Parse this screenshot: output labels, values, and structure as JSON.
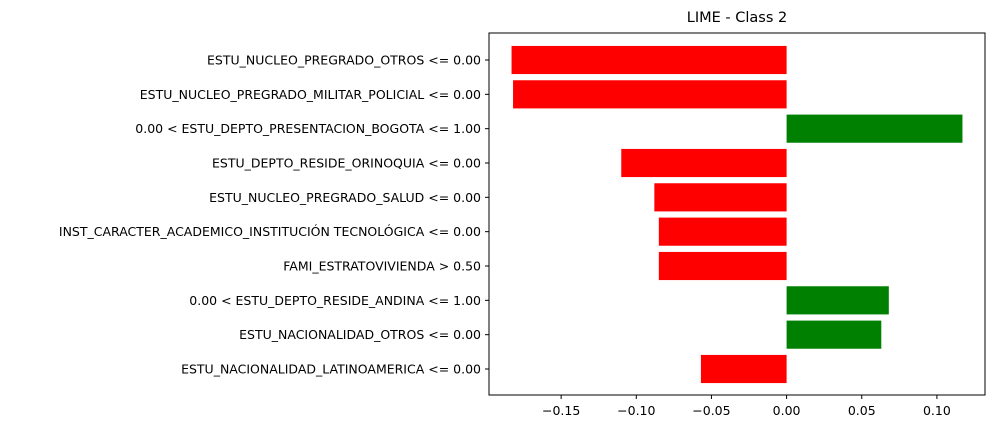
{
  "chart_data": {
    "type": "bar",
    "orientation": "horizontal",
    "title": "LIME - Class 2",
    "xlabel": "",
    "ylabel": "",
    "xlim": [
      -0.198,
      0.132
    ],
    "grid": false,
    "legend": "none",
    "xticks": [
      -0.15,
      -0.1,
      -0.05,
      0.0,
      0.05,
      0.1
    ],
    "xtick_labels": [
      "−0.15",
      "−0.10",
      "−0.05",
      "0.00",
      "0.05",
      "0.10"
    ],
    "categories": [
      "ESTU_NUCLEO_PREGRADO_OTROS <= 0.00",
      "ESTU_NUCLEO_PREGRADO_MILITAR_POLICIAL <= 0.00",
      "0.00 < ESTU_DEPTO_PRESENTACION_BOGOTA <= 1.00",
      "ESTU_DEPTO_RESIDE_ORINOQUIA <= 0.00",
      "ESTU_NUCLEO_PREGRADO_SALUD <= 0.00",
      "INST_CARACTER_ACADEMICO_INSTITUCIÓN TECNOLÓGICA <= 0.00",
      "FAMI_ESTRATOVIVIENDA > 0.50",
      "0.00 < ESTU_DEPTO_RESIDE_ANDINA <= 1.00",
      "ESTU_NACIONALIDAD_OTROS <= 0.00",
      "ESTU_NACIONALIDAD_LATINOAMERICA <= 0.00"
    ],
    "values": [
      -0.183,
      -0.182,
      0.117,
      -0.11,
      -0.088,
      -0.085,
      -0.085,
      0.068,
      0.063,
      -0.057
    ],
    "colors": {
      "positive": "#008000",
      "negative": "#ff0000"
    }
  }
}
